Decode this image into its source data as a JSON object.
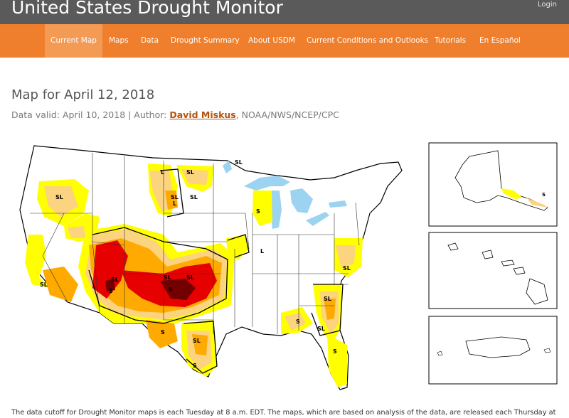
{
  "header": {
    "site_title": "United States Drought Monitor",
    "login_label": "Login"
  },
  "nav": {
    "items": [
      {
        "label": "Current Map",
        "active": true
      },
      {
        "label": "Maps"
      },
      {
        "label": "Data"
      },
      {
        "label": "Drought Summary"
      },
      {
        "label": "About USDM"
      },
      {
        "label": "Current Conditions and Outlooks"
      },
      {
        "label": "Tutorials"
      },
      {
        "label": "En Español"
      }
    ]
  },
  "map_info": {
    "title": "Map for April 12, 2018",
    "valid_prefix": "Data valid: April 10, 2018 | Author: ",
    "author": "David Miskus",
    "author_suffix": ", NOAA/NWS/NCEP/CPC"
  },
  "map_labels": {
    "sl": "SL",
    "l": "L",
    "s": "S"
  },
  "colors": {
    "d0_abnormally_dry": "#ffff00",
    "d1_moderate": "#fcd37f",
    "d2_severe": "#ffaa00",
    "d3_extreme": "#e60000",
    "d4_exceptional": "#730000",
    "water": "#9cd3f0",
    "nav_orange": "#ef7f2c",
    "header_gray": "#5a5a5a"
  },
  "footer": {
    "text": "The data cutoff for Drought Monitor maps is each Tuesday at 8 a.m. EDT. The maps, which are based on analysis of the data, are released each Thursday at"
  }
}
